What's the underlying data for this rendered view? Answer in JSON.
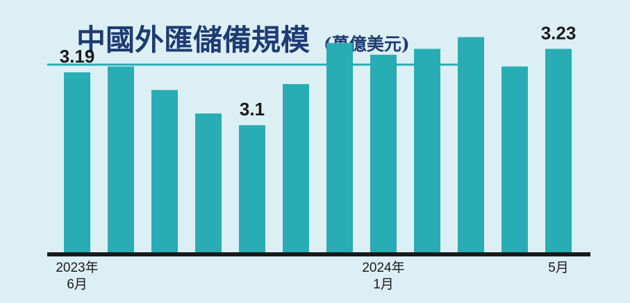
{
  "colors": {
    "background": "#dceff4",
    "bar": "#27adb3",
    "title": "#1f3b73",
    "rule": "#27adb3",
    "axis": "#1a1a1a"
  },
  "chart_data": {
    "type": "bar",
    "title": "中國外匯儲備規模",
    "unit": "(萬億美元)",
    "categories": [
      "2023-06",
      "2023-07",
      "2023-08",
      "2023-09",
      "2023-10",
      "2023-11",
      "2023-12",
      "2024-01",
      "2024-02",
      "2024-03",
      "2024-04",
      "2024-05"
    ],
    "values": [
      3.19,
      3.2,
      3.16,
      3.12,
      3.1,
      3.17,
      3.24,
      3.22,
      3.23,
      3.25,
      3.2,
      3.23
    ],
    "data_labels": [
      {
        "index": 0,
        "text": "3.19"
      },
      {
        "index": 4,
        "text": "3.1"
      },
      {
        "index": 11,
        "text": "3.23"
      }
    ],
    "x_labels": [
      {
        "index": 0,
        "line1": "2023年",
        "line2": "6月"
      },
      {
        "index": 7,
        "line1": "2024年",
        "line2": "1月"
      },
      {
        "index": 11,
        "line1": "5月",
        "line2": ""
      }
    ],
    "ylim": [
      2.88,
      3.26
    ],
    "grid": false,
    "legend": "none"
  }
}
